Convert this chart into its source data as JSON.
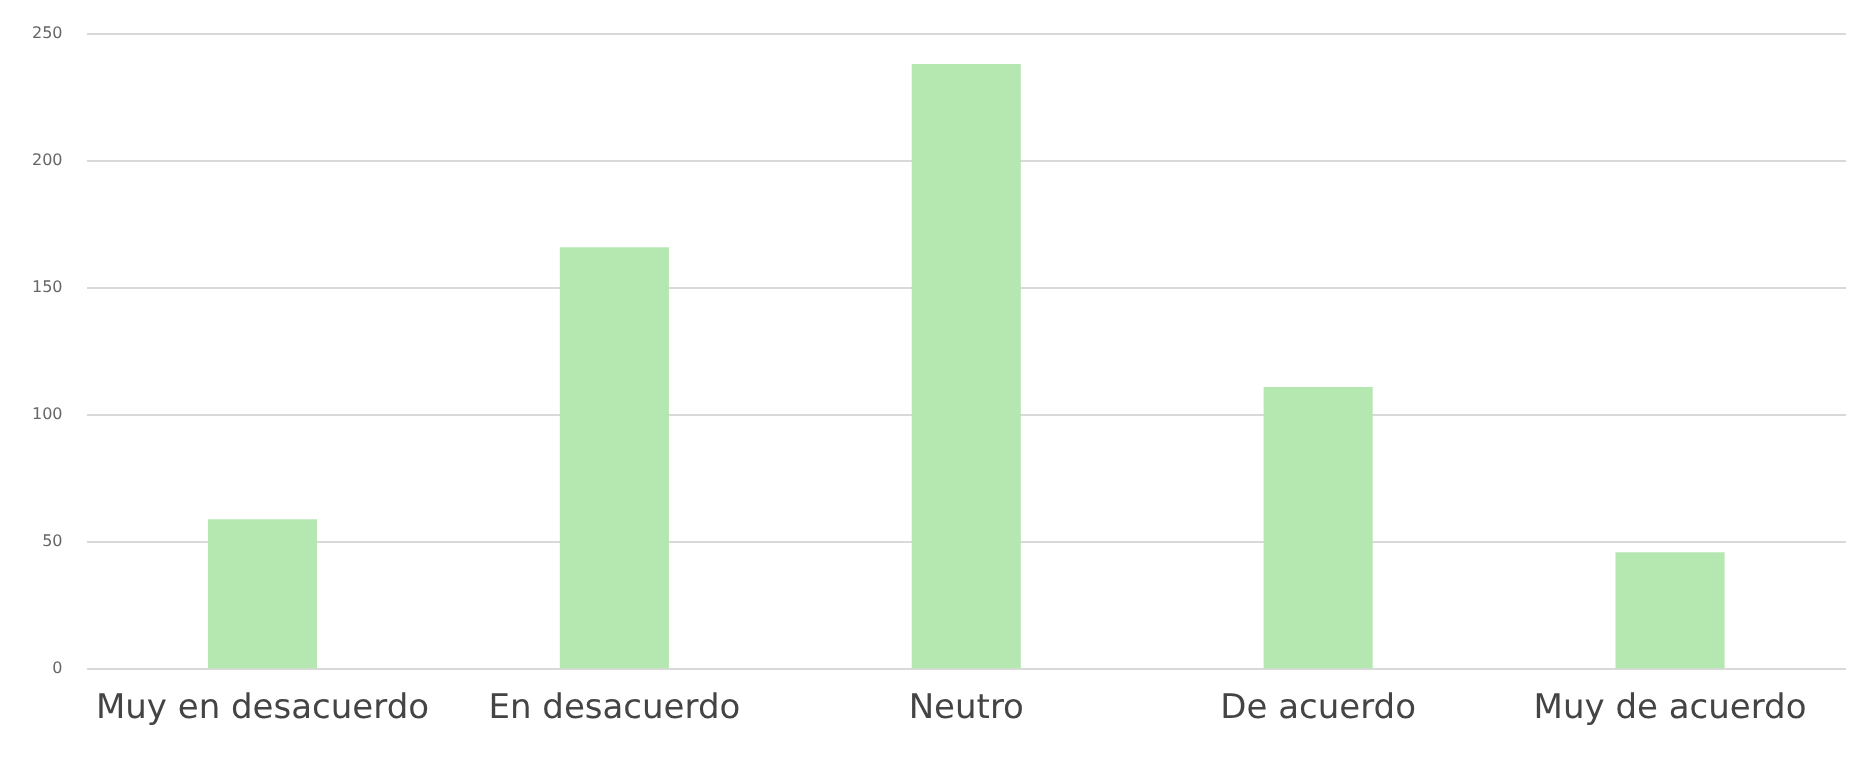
{
  "chart_data": {
    "type": "bar",
    "categories": [
      "Muy en desacuerdo",
      "En desacuerdo",
      "Neutro",
      "De acuerdo",
      "Muy de acuerdo"
    ],
    "values": [
      59,
      166,
      238,
      111,
      46
    ],
    "color": "#b4e8b0",
    "ylim": [
      0,
      250
    ],
    "yticks": [
      0,
      50,
      100,
      150,
      200,
      250
    ],
    "grid": "y"
  }
}
